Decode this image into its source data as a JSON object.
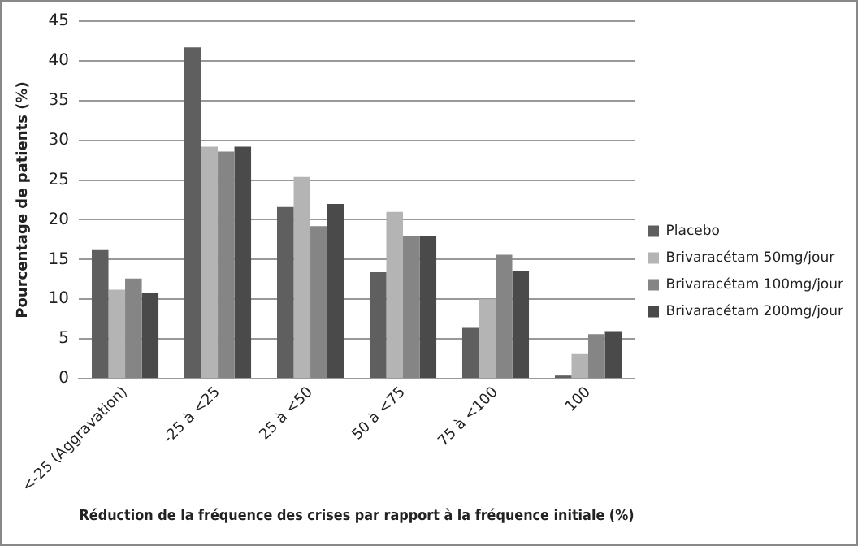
{
  "chart_data": {
    "type": "bar",
    "xlabel": "Réduction de la fréquence des crises par rapport à la fréquence initiale (%)",
    "ylabel": "Pourcentage de patients (%)",
    "categories": [
      "<-25 (Aggravation)",
      "-25 à <25",
      "25 à <50",
      "50 à <75",
      "75 à <100",
      "100"
    ],
    "series": [
      {
        "name": "Placebo",
        "color": "#5f5f5f",
        "values": [
          16.2,
          41.7,
          21.6,
          13.4,
          6.4,
          0.4
        ]
      },
      {
        "name": "Brivaracétam 50mg/jour",
        "color": "#b4b4b4",
        "values": [
          11.2,
          29.2,
          25.4,
          21,
          10,
          3.1
        ]
      },
      {
        "name": "Brivaracétam 100mg/jour",
        "color": "#858585",
        "values": [
          12.6,
          28.6,
          19.2,
          18,
          15.6,
          5.6
        ]
      },
      {
        "name": "Brivaracétam 200mg/jour",
        "color": "#4a4a4a",
        "values": [
          10.8,
          29.2,
          22,
          18,
          13.6,
          6
        ]
      }
    ],
    "ylim": [
      0,
      45
    ],
    "yticks": [
      0,
      5,
      10,
      15,
      20,
      25,
      30,
      35,
      40,
      45
    ],
    "grid": "y",
    "legend": "right"
  }
}
